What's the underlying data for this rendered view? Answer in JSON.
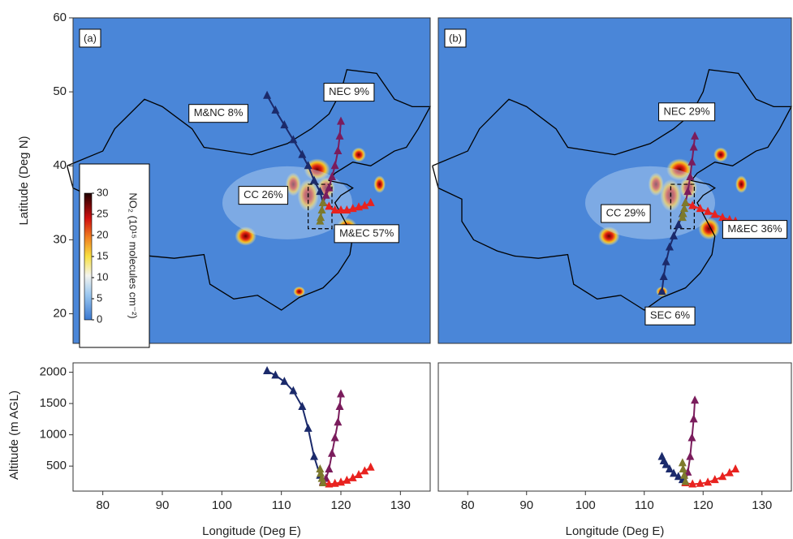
{
  "chart_data": [
    {
      "type": "trajectory",
      "panel_label": "(a)",
      "map": {
        "xlim": [
          75,
          135
        ],
        "ylim": [
          16,
          60
        ],
        "yticks": [
          20,
          30,
          40,
          50,
          60
        ],
        "ylabel": "Latitude (Deg N)"
      },
      "profile": {
        "xlim": [
          75,
          135
        ],
        "ylim": [
          100,
          2150
        ],
        "xticks": [
          80,
          90,
          100,
          110,
          120,
          130
        ],
        "yticks": [
          500,
          1000,
          1500,
          2000
        ],
        "xlabel": "Longitude (Deg E)",
        "ylabel": "Altitude (m AGL)"
      },
      "colorbar": {
        "label": "NO₂ (10¹⁵ molecules cm⁻²)",
        "lim": [
          0,
          30
        ],
        "ticks": [
          0,
          5,
          10,
          15,
          20,
          25,
          30
        ]
      },
      "series": [
        {
          "name": "M&NC 8%",
          "color": "#1b2a6b",
          "lon": [
            117,
            116.5,
            115.5,
            114.5,
            113.5,
            112,
            110.5,
            109,
            107.6
          ],
          "lat": [
            35,
            36.5,
            38,
            40,
            41.5,
            43.5,
            45.5,
            47.5,
            49.5
          ],
          "altitude": [
            250,
            350,
            650,
            1100,
            1450,
            1700,
            1850,
            1950,
            2020
          ]
        },
        {
          "name": "NEC 9%",
          "color": "#7a1c5c",
          "lon": [
            117,
            117.5,
            118,
            118.5,
            119,
            119.5,
            119.8,
            120
          ],
          "lat": [
            35,
            36,
            37,
            38.5,
            40,
            42,
            44,
            46
          ],
          "altitude": [
            250,
            300,
            450,
            700,
            950,
            1200,
            1450,
            1650
          ]
        },
        {
          "name": "M&EC 57%",
          "color": "#e8221f",
          "lon": [
            117,
            118,
            119,
            120,
            121,
            122,
            123,
            124,
            125
          ],
          "lat": [
            35,
            34.5,
            34,
            34,
            34,
            34.2,
            34.4,
            34.6,
            35
          ],
          "altitude": [
            230,
            210,
            220,
            240,
            270,
            310,
            360,
            420,
            480
          ]
        },
        {
          "name": "CC 26%",
          "color": "#7d7a2c",
          "lon": [
            117,
            116.8,
            116.6,
            116.5
          ],
          "lat": [
            35,
            34,
            33,
            32.5
          ],
          "altitude": [
            230,
            300,
            380,
            450
          ]
        }
      ]
    },
    {
      "type": "trajectory",
      "panel_label": "(b)",
      "map": {
        "xlim": [
          75,
          135
        ],
        "ylim": [
          16,
          60
        ]
      },
      "profile": {
        "xlim": [
          75,
          135
        ],
        "ylim": [
          100,
          2150
        ],
        "xticks": [
          80,
          90,
          100,
          110,
          120,
          130
        ],
        "xlabel": "Longitude (Deg E)"
      },
      "series": [
        {
          "name": "SEC 6%",
          "color": "#1b2a6b",
          "lon": [
            117,
            116.5,
            115.8,
            115,
            114.3,
            113.7,
            113.3,
            113
          ],
          "lat": [
            35,
            33.5,
            32,
            30.5,
            29,
            27,
            25,
            23
          ],
          "altitude": [
            230,
            280,
            330,
            380,
            450,
            520,
            580,
            650
          ]
        },
        {
          "name": "NEC 29%",
          "color": "#7a1c5c",
          "lon": [
            117,
            117.4,
            117.8,
            118.1,
            118.4,
            118.6
          ],
          "lat": [
            35,
            36.5,
            38.5,
            40.5,
            42.5,
            44
          ],
          "altitude": [
            250,
            400,
            650,
            950,
            1250,
            1550
          ]
        },
        {
          "name": "M&EC 36%",
          "color": "#e8221f",
          "lon": [
            117,
            118.2,
            119.5,
            120.8,
            122,
            123.3,
            124.5,
            125.5
          ],
          "lat": [
            35,
            34.6,
            34.2,
            33.8,
            33.4,
            33,
            32.7,
            32.5
          ],
          "altitude": [
            230,
            210,
            220,
            240,
            280,
            330,
            390,
            450
          ]
        },
        {
          "name": "CC 29%",
          "color": "#7d7a2c",
          "lon": [
            117,
            116.8,
            116.6,
            116.5
          ],
          "lat": [
            35,
            34.2,
            33.5,
            33
          ],
          "altitude": [
            250,
            350,
            450,
            550
          ]
        }
      ]
    }
  ]
}
